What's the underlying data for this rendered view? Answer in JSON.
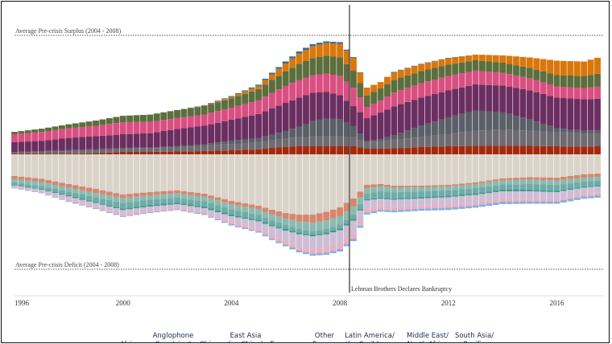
{
  "chart_data": {
    "type": "area",
    "stacked": true,
    "diverging": true,
    "title": "",
    "xlabel": "",
    "ylabel": "",
    "x_range": [
      1996.0,
      2017.5
    ],
    "y_range": [
      -100,
      100
    ],
    "x_ticks": [
      1996,
      2000,
      2004,
      2008,
      2012,
      2016
    ],
    "grid": false,
    "legend": "bottom",
    "reference_lines": [
      {
        "label": "Average Pre-crisis Surplus (2004 - 2008)",
        "value": 90
      },
      {
        "label": "Average Pre-crisis Deficit (2004 - 2008)",
        "value": -85
      }
    ],
    "event": {
      "label": "Lehman Brothers Declares Bankruptcy",
      "x": 2008.5
    },
    "x": [
      1996.0,
      1997.0,
      1998.0,
      1999.0,
      2000.0,
      2001.0,
      2002.0,
      2003.0,
      2004.0,
      2005.0,
      2005.5,
      2006.0,
      2006.5,
      2007.0,
      2007.5,
      2008.0,
      2008.5,
      2009.0,
      2009.5,
      2010.0,
      2011.0,
      2012.0,
      2013.0,
      2014.0,
      2015.0,
      2016.0,
      2017.0,
      2017.5
    ],
    "surplus_series": [
      {
        "name": "Other Europe",
        "color": "#a32a0c",
        "values": [
          0.7,
          0.7,
          0.7,
          1.1,
          2.2,
          2.2,
          2.6,
          3.0,
          3.7,
          4.5,
          5.9,
          6.7,
          7.4,
          7.4,
          7.4,
          7.4,
          7.4,
          5.2,
          5.2,
          5.6,
          6.7,
          7.4,
          7.8,
          7.8,
          7.8,
          7.4,
          7.0,
          7.4
        ]
      },
      {
        "name": "East Asia (ex China)",
        "color": "#6f6b72",
        "values": [
          1.1,
          1.5,
          2.2,
          2.6,
          3.0,
          3.3,
          4.1,
          4.8,
          5.9,
          6.7,
          7.4,
          8.1,
          8.5,
          9.3,
          9.3,
          9.3,
          8.5,
          6.3,
          6.7,
          7.8,
          9.3,
          11.1,
          14.1,
          14.8,
          14.1,
          13.0,
          12.2,
          11.9
        ]
      },
      {
        "name": "Eurozone",
        "color": "#5a5f68",
        "values": [
          0.4,
          0.7,
          1.1,
          1.1,
          0.7,
          0.7,
          1.1,
          1.5,
          3.0,
          3.7,
          4.8,
          6.7,
          9.6,
          14.1,
          16.3,
          15.6,
          10.0,
          1.1,
          2.2,
          4.1,
          10.4,
          15.6,
          18.5,
          16.3,
          10.4,
          3.7,
          2.6,
          3.0
        ]
      },
      {
        "name": "China",
        "color": "#6b2e60",
        "values": [
          8.9,
          9.6,
          11.1,
          11.9,
          12.6,
          13.3,
          15.6,
          17.0,
          19.3,
          22.2,
          24.4,
          25.9,
          26.7,
          25.9,
          24.4,
          22.2,
          18.5,
          20.7,
          24.4,
          26.7,
          25.9,
          24.8,
          24.1,
          24.4,
          26.7,
          28.1,
          28.9,
          28.9
        ]
      },
      {
        "name": "Middle East/ North Africa",
        "color": "#d94f81",
        "values": [
          7.4,
          8.1,
          8.9,
          9.6,
          11.1,
          10.4,
          10.0,
          10.4,
          11.1,
          12.6,
          14.1,
          15.6,
          16.3,
          16.3,
          17.0,
          17.8,
          17.0,
          10.4,
          11.1,
          12.6,
          13.3,
          13.3,
          12.6,
          11.9,
          11.1,
          10.4,
          10.4,
          11.1
        ]
      },
      {
        "name": "Africa",
        "color": "#5b6e3d",
        "values": [
          2.2,
          3.0,
          3.7,
          4.8,
          5.9,
          6.7,
          7.4,
          7.8,
          8.5,
          10.4,
          11.9,
          13.3,
          14.8,
          15.6,
          16.3,
          17.0,
          15.6,
          10.4,
          11.1,
          11.9,
          11.1,
          10.4,
          9.6,
          9.3,
          9.6,
          10.4,
          11.1,
          11.9
        ]
      },
      {
        "name": "Latin America/ the Caribbean",
        "color": "#d9770d",
        "values": [
          0.0,
          0.0,
          0.0,
          0.0,
          0.0,
          0.0,
          0.0,
          0.4,
          1.5,
          3.0,
          5.2,
          7.4,
          9.6,
          11.1,
          11.9,
          12.6,
          11.9,
          7.4,
          5.9,
          7.0,
          6.3,
          5.9,
          5.2,
          6.7,
          9.6,
          13.3,
          13.3,
          14.8
        ]
      },
      {
        "name": "South Asia/ Pacific",
        "color": "#2f6fa3",
        "values": [
          0.0,
          0.0,
          0.0,
          0.0,
          0.0,
          0.0,
          0.0,
          0.4,
          0.7,
          1.1,
          1.5,
          1.9,
          1.9,
          1.9,
          1.5,
          1.5,
          0.7,
          0.0,
          0.0,
          0.4,
          0.4,
          0.4,
          0.0,
          0.0,
          0.0,
          0.0,
          0.0,
          0.0
        ]
      }
    ],
    "deficit_series": [
      {
        "name": "Anglophone Countries*",
        "color": "#d4cbbf",
        "values": [
          -20.0,
          -22.6,
          -27.4,
          -31.9,
          -37.0,
          -34.8,
          -33.3,
          -36.3,
          -43.0,
          -47.4,
          -51.1,
          -54.1,
          -55.6,
          -55.6,
          -53.0,
          -48.9,
          -40.7,
          -28.1,
          -27.4,
          -28.9,
          -28.9,
          -28.1,
          -25.9,
          -22.2,
          -21.1,
          -21.5,
          -18.5,
          -17.8
        ]
      },
      {
        "name": "Eurozone",
        "color": "#d07a5d",
        "values": [
          -2.6,
          -3.0,
          -3.3,
          -3.7,
          -3.3,
          -3.0,
          -2.6,
          -2.6,
          -3.0,
          -3.3,
          -4.1,
          -4.8,
          -6.3,
          -7.4,
          -7.8,
          -8.1,
          -7.4,
          -3.3,
          -2.2,
          -1.9,
          -1.5,
          -1.5,
          -1.5,
          -1.9,
          -2.2,
          -2.6,
          -3.0,
          -3.0
        ]
      },
      {
        "name": "Other Europe",
        "color": "#7fb3a8",
        "values": [
          -3.3,
          -3.7,
          -3.7,
          -4.1,
          -4.4,
          -4.1,
          -4.1,
          -4.4,
          -4.8,
          -5.2,
          -5.6,
          -6.3,
          -7.0,
          -7.8,
          -8.1,
          -7.8,
          -7.4,
          -4.8,
          -4.4,
          -4.1,
          -3.7,
          -3.7,
          -3.7,
          -3.7,
          -4.1,
          -4.1,
          -3.7,
          -3.7
        ]
      },
      {
        "name": "Middle East/ North Africa",
        "color": "#5fa3a0",
        "values": [
          -2.2,
          -2.6,
          -3.3,
          -4.1,
          -5.2,
          -4.8,
          -4.4,
          -4.8,
          -4.8,
          -4.4,
          -4.1,
          -3.7,
          -3.3,
          -3.3,
          -3.3,
          -3.7,
          -4.1,
          -5.2,
          -5.9,
          -5.9,
          -5.2,
          -4.8,
          -4.8,
          -4.8,
          -5.2,
          -5.2,
          -4.4,
          -4.1
        ]
      },
      {
        "name": "Africa",
        "color": "#2f8f7b",
        "values": [
          -0.7,
          -0.7,
          -1.1,
          -1.1,
          -1.5,
          -1.5,
          -1.5,
          -1.5,
          -1.5,
          -1.5,
          -1.5,
          -1.5,
          -1.5,
          -1.5,
          -1.5,
          -1.5,
          -1.5,
          -1.1,
          -1.1,
          -1.1,
          -1.5,
          -1.5,
          -1.5,
          -1.5,
          -1.5,
          -1.5,
          -1.1,
          -1.1
        ]
      },
      {
        "name": "Latin America/ the Caribbean",
        "color": "#c9b6d1",
        "values": [
          -1.5,
          -2.2,
          -3.3,
          -3.7,
          -4.1,
          -3.7,
          -3.3,
          -4.1,
          -5.2,
          -6.7,
          -8.1,
          -9.6,
          -11.1,
          -11.9,
          -12.6,
          -12.6,
          -11.9,
          -7.4,
          -6.7,
          -6.7,
          -6.7,
          -7.0,
          -7.0,
          -7.0,
          -6.7,
          -6.3,
          -5.9,
          -5.9
        ]
      },
      {
        "name": "East Asia (ex China)",
        "color": "#e8a7b8",
        "values": [
          -0.7,
          -0.7,
          -1.1,
          -1.1,
          -1.5,
          -1.5,
          -1.5,
          -1.5,
          -2.2,
          -2.6,
          -3.0,
          -3.3,
          -3.7,
          -4.1,
          -4.4,
          -4.8,
          -4.8,
          -3.7,
          -3.3,
          -3.0,
          -2.6,
          -2.6,
          -2.6,
          -2.6,
          -2.6,
          -2.2,
          -2.2,
          -2.2
        ]
      },
      {
        "name": "South Asia/ Pacific",
        "color": "#7aa7d9",
        "values": [
          -0.4,
          -0.4,
          -0.7,
          -0.7,
          -0.7,
          -0.7,
          -0.7,
          -0.7,
          -1.1,
          -1.1,
          -1.5,
          -1.5,
          -1.9,
          -1.9,
          -1.9,
          -2.2,
          -2.2,
          -1.9,
          -1.9,
          -1.9,
          -1.9,
          -2.2,
          -2.2,
          -2.2,
          -2.2,
          -2.2,
          -2.2,
          -2.2
        ]
      }
    ]
  },
  "legend_items": [
    {
      "lines": [
        "",
        "Africa"
      ]
    },
    {
      "lines": [
        "Anglophone",
        "Countries*"
      ]
    },
    {
      "lines": [
        "",
        "China"
      ]
    },
    {
      "lines": [
        "East Asia",
        "(ex China)"
      ]
    },
    {
      "lines": [
        "",
        "Eurozone"
      ]
    },
    {
      "lines": [
        "Other",
        "Europe"
      ]
    },
    {
      "lines": [
        "Latin America/",
        "the Caribbean"
      ]
    },
    {
      "lines": [
        "Middle East/",
        "North Africa"
      ]
    },
    {
      "lines": [
        "South Asia/",
        "Pacific"
      ]
    }
  ]
}
